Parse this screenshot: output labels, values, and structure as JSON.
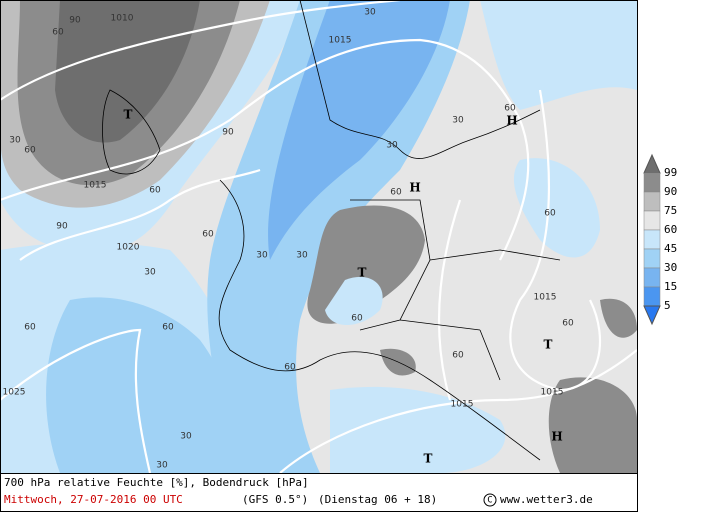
{
  "map": {
    "labels": [
      "90",
      "1010",
      "60",
      "1015",
      "30",
      "T",
      "90",
      "30",
      "60",
      "1015",
      "60",
      "90",
      "60",
      "1020",
      "30",
      "30",
      "60",
      "H",
      "30",
      "60",
      "H",
      "T",
      "30",
      "60",
      "60",
      "1015",
      "60",
      "T",
      "60",
      "60",
      "60",
      "1025",
      "1015",
      "30",
      "30",
      "60",
      "T",
      "H",
      "1015",
      "30"
    ]
  },
  "legend": {
    "levels": [
      99,
      90,
      75,
      60,
      45,
      30,
      15,
      5
    ]
  },
  "footer": {
    "title": "700 hPa relative Feuchte [%], Bodendruck [hPa]",
    "date": "Mittwoch, 27-07-2016  00 UTC",
    "model": "(GFS 0.5°)",
    "run": "(Dienstag 06 + 18)",
    "copyright": "C",
    "source": "www.wetter3.de"
  }
}
